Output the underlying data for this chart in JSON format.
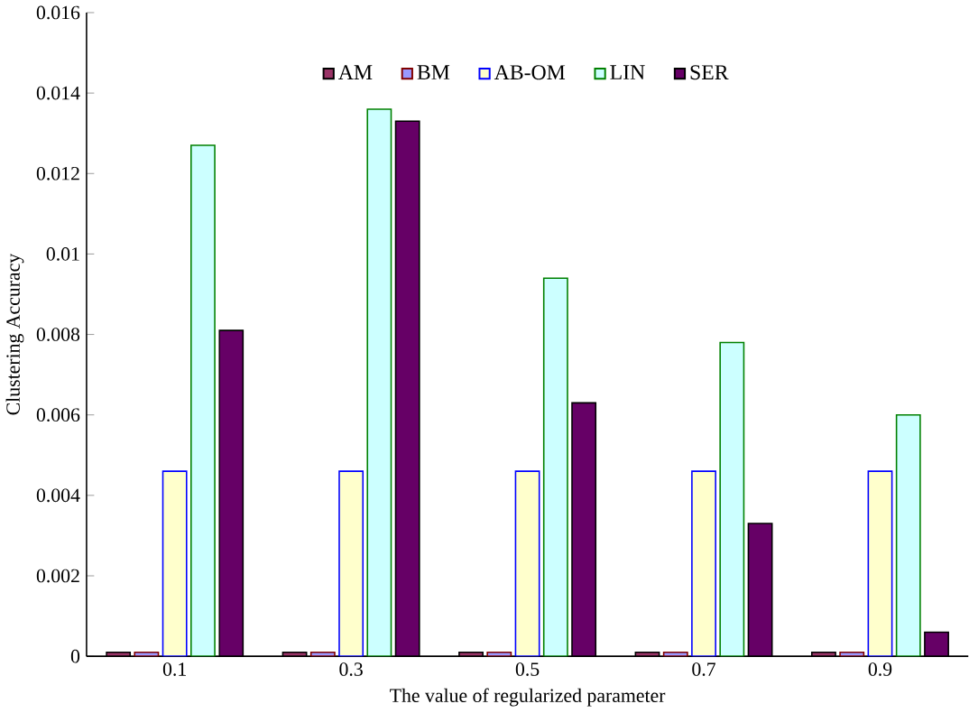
{
  "chart_data": {
    "type": "bar",
    "xlabel": "The value of regularized parameter",
    "ylabel": "Clustering Accuracy",
    "categories": [
      "0.1",
      "0.3",
      "0.5",
      "0.7",
      "0.9"
    ],
    "series": [
      {
        "name": "AM",
        "color": "#993366",
        "values": [
          0.0001,
          0.0001,
          0.0001,
          0.0001,
          0.0001
        ]
      },
      {
        "name": "BM",
        "color": "#9999ff",
        "values": [
          0.0001,
          0.0001,
          0.0001,
          0.0001,
          0.0001
        ]
      },
      {
        "name": "AB-OM",
        "color": "#ffffcc",
        "values": [
          0.0046,
          0.0046,
          0.0046,
          0.0046,
          0.0046
        ]
      },
      {
        "name": "LIN",
        "color": "#ccffff",
        "values": [
          0.0127,
          0.0136,
          0.0094,
          0.0078,
          0.006
        ]
      },
      {
        "name": "SER",
        "color": "#660066",
        "values": [
          0.0081,
          0.0133,
          0.0063,
          0.0033,
          0.0006
        ]
      }
    ],
    "ylim": [
      0,
      0.016
    ],
    "yticks": [
      0,
      0.002,
      0.004,
      0.006,
      0.008,
      0.01,
      0.012,
      0.014,
      0.016
    ],
    "legend": "top",
    "grid": false
  }
}
